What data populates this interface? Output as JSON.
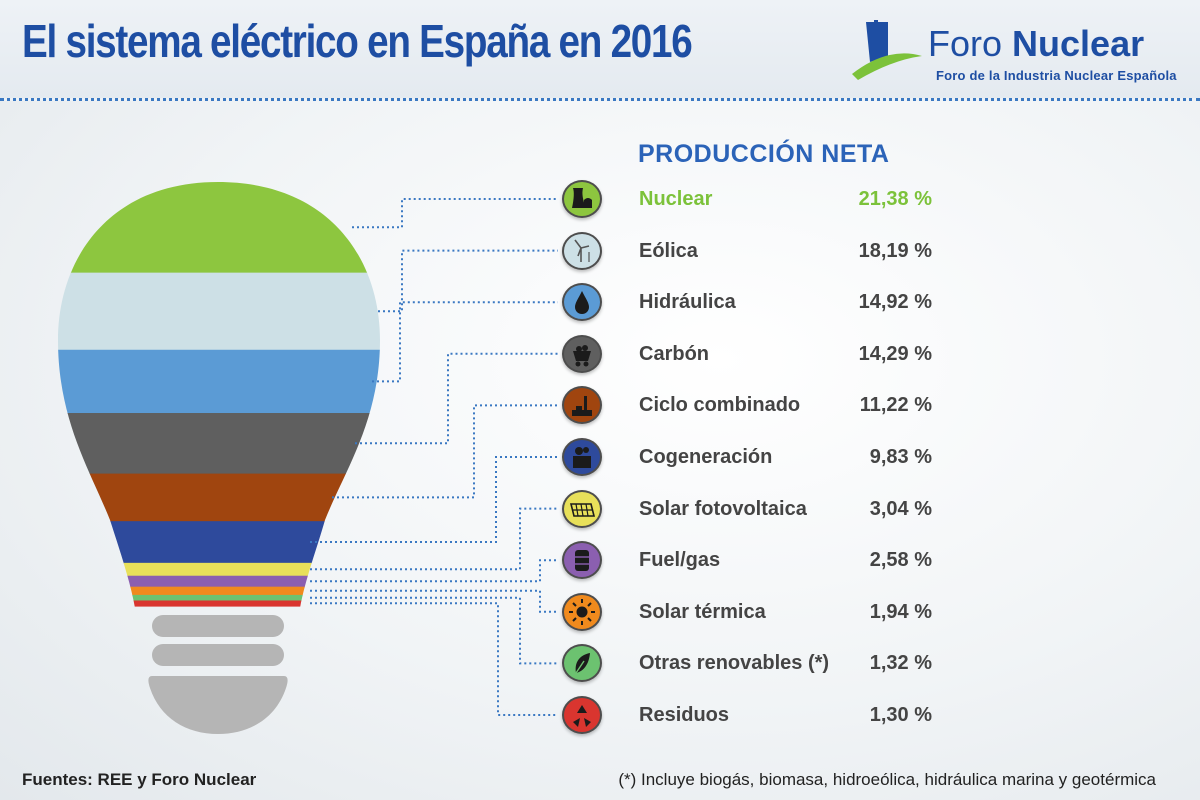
{
  "header": {
    "title": "El sistema eléctrico en España en 2016",
    "logo_name_light": "Foro ",
    "logo_name_bold": "Nuclear",
    "logo_subtitle": "Foro de la Industria Nuclear Española"
  },
  "chart_data": {
    "type": "bar",
    "title": "PRODUCCIÓN NETA",
    "unit": "%",
    "highlight_color": "#7cc23a",
    "categories": [
      "Nuclear",
      "Eólica",
      "Hidráulica",
      "Carbón",
      "Ciclo combinado",
      "Cogeneración",
      "Solar fotovoltaica",
      "Fuel/gas",
      "Solar térmica",
      "Otras renovables (*)",
      "Residuos"
    ],
    "values": [
      21.38,
      18.19,
      14.92,
      14.29,
      11.22,
      9.83,
      3.04,
      2.58,
      1.94,
      1.32,
      1.3
    ],
    "value_labels": [
      "21,38 %",
      "18,19 %",
      "14,92 %",
      "14,29 %",
      "11,22 %",
      "9,83 %",
      "3,04 %",
      "2,58 %",
      "1,94 %",
      "1,32 %",
      "1,30 %"
    ],
    "colors": [
      "#8dc63f",
      "#cde0e6",
      "#5b9bd5",
      "#5f5f5f",
      "#a0450f",
      "#2e4a9c",
      "#e8e05a",
      "#8b5fb0",
      "#f08a1d",
      "#6cc270",
      "#d9352f"
    ],
    "icons": [
      "nuclear-plant-icon",
      "wind-turbine-icon",
      "water-drop-icon",
      "coal-cart-icon",
      "factory-chimney-icon",
      "cogeneration-plant-icon",
      "solar-panel-icon",
      "oil-barrel-icon",
      "sun-icon",
      "leaf-icon",
      "recycle-icon"
    ]
  },
  "footer": {
    "sources": "Fuentes: REE y Foro Nuclear",
    "note": "(*) Incluye biogás, biomasa, hidroeólica, hidráulica marina y geotérmica"
  }
}
